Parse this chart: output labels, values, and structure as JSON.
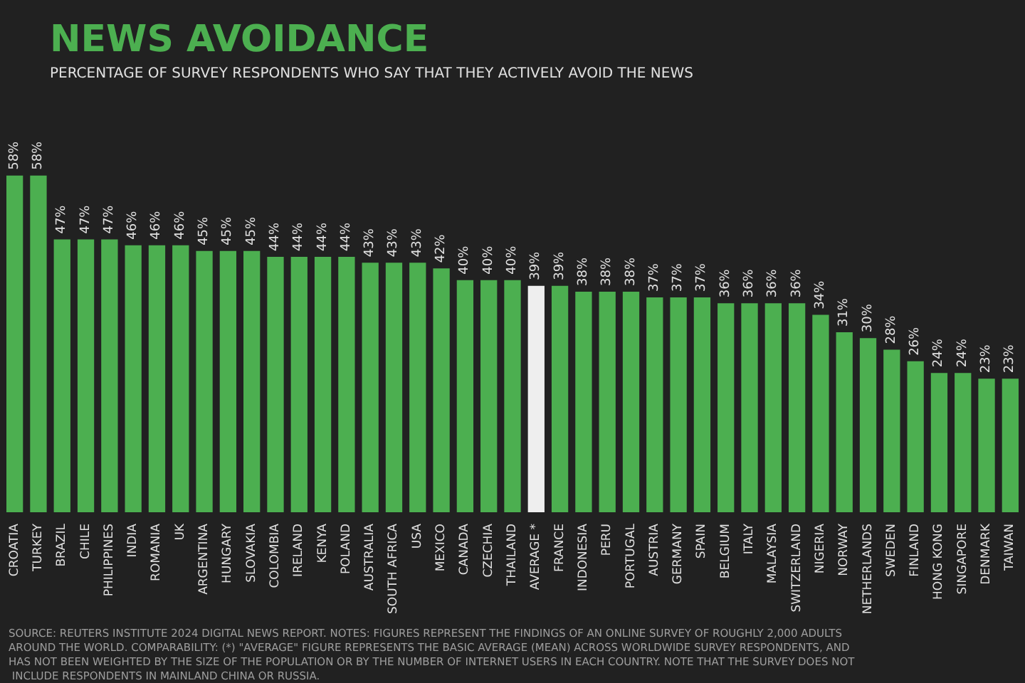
{
  "chart_data": {
    "type": "bar",
    "title": "NEWS AVOIDANCE",
    "subtitle": "PERCENTAGE OF SURVEY RESPONDENTS WHO SAY THAT THEY ACTIVELY AVOID THE NEWS",
    "categories": [
      "CROATIA",
      "TURKEY",
      "BRAZIL",
      "CHILE",
      "PHILIPPINES",
      "INDIA",
      "ROMANIA",
      "UK",
      "ARGENTINA",
      "HUNGARY",
      "SLOVAKIA",
      "COLOMBIA",
      "IRELAND",
      "KENYA",
      "POLAND",
      "AUSTRALIA",
      "SOUTH AFRICA",
      "USA",
      "MEXICO",
      "CANADA",
      "CZECHIA",
      "THAILAND",
      "AVERAGE *",
      "FRANCE",
      "INDONESIA",
      "PERU",
      "PORTUGAL",
      "AUSTRIA",
      "GERMANY",
      "SPAIN",
      "BELGIUM",
      "ITALY",
      "MALAYSIA",
      "SWITZERLAND",
      "NIGERIA",
      "NORWAY",
      "NETHERLANDS",
      "SWEDEN",
      "FINLAND",
      "HONG KONG",
      "SINGAPORE",
      "DENMARK",
      "TAIWAN"
    ],
    "values": [
      58,
      58,
      47,
      47,
      47,
      46,
      46,
      46,
      45,
      45,
      45,
      44,
      44,
      44,
      44,
      43,
      43,
      43,
      42,
      40,
      40,
      40,
      39,
      39,
      38,
      38,
      38,
      37,
      37,
      37,
      36,
      36,
      36,
      36,
      34,
      31,
      30,
      28,
      26,
      24,
      24,
      23,
      23
    ],
    "value_labels": [
      "58%",
      "58%",
      "47%",
      "47%",
      "47%",
      "46%",
      "46%",
      "46%",
      "45%",
      "45%",
      "45%",
      "44%",
      "44%",
      "44%",
      "44%",
      "43%",
      "43%",
      "43%",
      "42%",
      "40%",
      "40%",
      "40%",
      "39%",
      "39%",
      "38%",
      "38%",
      "38%",
      "37%",
      "37%",
      "37%",
      "36%",
      "36%",
      "36%",
      "36%",
      "34%",
      "31%",
      "30%",
      "28%",
      "26%",
      "24%",
      "24%",
      "23%",
      "23%"
    ],
    "colors": [
      "#4caf50",
      "#4caf50",
      "#4caf50",
      "#4caf50",
      "#4caf50",
      "#4caf50",
      "#4caf50",
      "#4caf50",
      "#4caf50",
      "#4caf50",
      "#4caf50",
      "#4caf50",
      "#4caf50",
      "#4caf50",
      "#4caf50",
      "#4caf50",
      "#4caf50",
      "#4caf50",
      "#4caf50",
      "#4caf50",
      "#4caf50",
      "#4caf50",
      "#eeeeee",
      "#4caf50",
      "#4caf50",
      "#4caf50",
      "#4caf50",
      "#4caf50",
      "#4caf50",
      "#4caf50",
      "#4caf50",
      "#4caf50",
      "#4caf50",
      "#4caf50",
      "#4caf50",
      "#4caf50",
      "#4caf50",
      "#4caf50",
      "#4caf50",
      "#4caf50",
      "#4caf50",
      "#4caf50",
      "#4caf50"
    ],
    "annotations": [
      "SOURCE: REUTERS INSTITUTE 2024 DIGITAL NEWS REPORT. NOTES: FIGURES REPRESENT THE FINDINGS OF AN ONLINE SURVEY OF ROUGHLY 2,000 ADULTS AROUND THE WORLD. COMPARABILITY: (*) \"AVERAGE\" FIGURE REPRESENTS THE BASIC AVERAGE (MEAN) ACROSS WORLDWIDE SURVEY RESPONDENTS, AND HAS NOT BEEN WEIGHTED BY THE SIZE OF THE POPULATION OR BY THE NUMBER OF INTERNET USERS IN EACH COUNTRY. NOTE THAT THE SURVEY DOES NOT INCLUDE RESPONDENTS IN MAINLAND CHINA OR RUSSIA."
    ],
    "grid": false
  }
}
